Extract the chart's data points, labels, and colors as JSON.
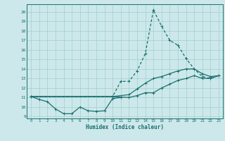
{
  "xlabel": "Humidex (Indice chaleur)",
  "bg_color": "#cde8ea",
  "grid_color": "#9ecfcf",
  "line_color": "#1a7070",
  "xlim": [
    -0.5,
    23.5
  ],
  "ylim": [
    8.8,
    20.8
  ],
  "yticks": [
    9,
    10,
    11,
    12,
    13,
    14,
    15,
    16,
    17,
    18,
    19,
    20
  ],
  "xticks": [
    0,
    1,
    2,
    3,
    4,
    5,
    6,
    7,
    8,
    9,
    10,
    11,
    12,
    13,
    14,
    15,
    16,
    17,
    18,
    19,
    20,
    21,
    22,
    23
  ],
  "line1_x": [
    0,
    1,
    2,
    3,
    4,
    5,
    6,
    7,
    8,
    9,
    10,
    11
  ],
  "line1_y": [
    11.1,
    10.8,
    10.55,
    9.8,
    9.3,
    9.3,
    10.0,
    9.6,
    9.55,
    9.6,
    10.9,
    11.0
  ],
  "line2_x": [
    0,
    10,
    11,
    12,
    13,
    14,
    15,
    16,
    17,
    18,
    19,
    20,
    21,
    22,
    23
  ],
  "line2_y": [
    11.1,
    11.1,
    12.7,
    12.7,
    13.8,
    15.6,
    20.2,
    18.5,
    17.0,
    16.5,
    15.1,
    14.0,
    13.2,
    13.0,
    13.3
  ],
  "line3_x": [
    0,
    10,
    12,
    13,
    14,
    15,
    16,
    17,
    18,
    19,
    20,
    21,
    22,
    23
  ],
  "line3_y": [
    11.1,
    11.1,
    11.3,
    11.9,
    12.5,
    13.0,
    13.2,
    13.5,
    13.8,
    14.0,
    14.0,
    13.5,
    13.2,
    13.3
  ],
  "line4_x": [
    0,
    10,
    12,
    13,
    14,
    15,
    16,
    17,
    18,
    19,
    20,
    21,
    22,
    23
  ],
  "line4_y": [
    11.1,
    11.1,
    11.0,
    11.2,
    11.5,
    11.5,
    12.0,
    12.4,
    12.8,
    13.0,
    13.3,
    13.0,
    13.0,
    13.3
  ]
}
